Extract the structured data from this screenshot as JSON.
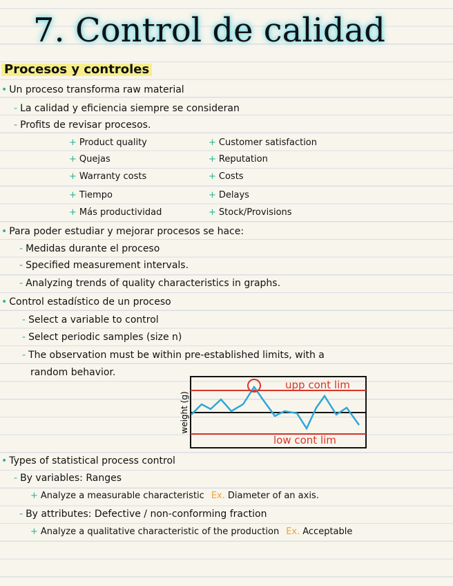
{
  "title": "7. Control de calidad",
  "heading": "Procesos y controles",
  "intro": {
    "bullet": "Un proceso transforma raw material",
    "points": [
      "La calidad y eficiencia siempre se consideran",
      "Profits de revisar procesos."
    ],
    "benefits": {
      "left": [
        "Product quality",
        "Quejas",
        "Warranty costs",
        "Tiempo",
        "Más productividad"
      ],
      "right": [
        "Customer satisfaction",
        "Reputation",
        "Costs",
        "Delays",
        "Stock/Provisions"
      ]
    }
  },
  "study": {
    "bullet": "Para poder estudiar y mejorar procesos se hace:",
    "points": [
      "Medidas durante el proceso",
      "Specified measurement intervals.",
      "Analyzing trends of quality characteristics in graphs."
    ]
  },
  "spc": {
    "bullet": "Control estadístico de un proceso",
    "points": [
      "Select a variable to control",
      "Select periodic samples (size n)",
      "The observation must be within pre-established limits, with a"
    ],
    "continuation": "random behavior."
  },
  "chart": {
    "y_label": "weight (g)",
    "upper_label": "upp cont lim",
    "lower_label": "low cont lim"
  },
  "types": {
    "bullet": "Types of statistical process control",
    "groups": [
      {
        "label": "By variables: Ranges",
        "detail": "Analyze a measurable characteristic",
        "example_label": "Ex.",
        "example": "Diameter of an axis."
      },
      {
        "label": "By attributes: Defective / non-conforming fraction",
        "detail": "Analyze a qualitative characteristic of the production",
        "example_label": "Ex.",
        "example": "Acceptable"
      }
    ]
  }
}
